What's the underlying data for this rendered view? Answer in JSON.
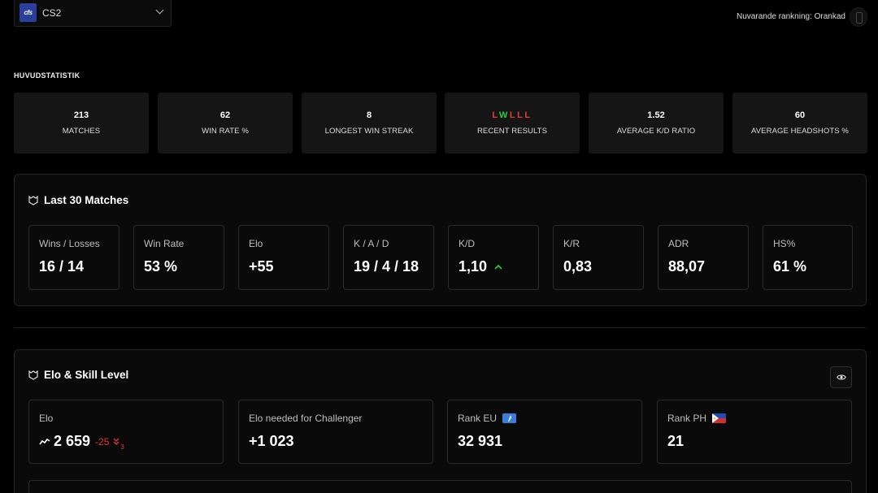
{
  "game_select": {
    "logo_text": "cfs",
    "name": "CS2"
  },
  "ranking": {
    "label": "Nuvarande rankning: Orankad"
  },
  "main_stats": {
    "title": "HUVUDSTATISTIK",
    "items": [
      {
        "value": "213",
        "label": "MATCHES"
      },
      {
        "value": "62",
        "label": "WIN RATE %"
      },
      {
        "value": "8",
        "label": "LONGEST WIN STREAK"
      },
      {
        "results": [
          "L",
          "W",
          "L",
          "L",
          "L"
        ],
        "label": "RECENT RESULTS"
      },
      {
        "value": "1.52",
        "label": "AVERAGE K/D RATIO"
      },
      {
        "value": "60",
        "label": "AVERAGE HEADSHOTS %"
      }
    ]
  },
  "last30": {
    "title": "Last 30 Matches",
    "cards": [
      {
        "label": "Wins / Losses",
        "value": "16 / 14"
      },
      {
        "label": "Win Rate",
        "value": "53 %"
      },
      {
        "label": "Elo",
        "value": "+55"
      },
      {
        "label": "K / A / D",
        "value": "19 / 4 / 18"
      },
      {
        "label": "K/D",
        "value": "1,10",
        "trend": "up"
      },
      {
        "label": "K/R",
        "value": "0,83"
      },
      {
        "label": "ADR",
        "value": "88,07"
      },
      {
        "label": "HS%",
        "value": "61 %"
      }
    ]
  },
  "elo_skill": {
    "title": "Elo & Skill Level",
    "cards": [
      {
        "label": "Elo",
        "value": "2 659",
        "delta": "-25",
        "delta_sub": "3"
      },
      {
        "label": "Elo needed for Challenger",
        "value": "+1 023"
      },
      {
        "label": "Rank EU",
        "value": "32 931",
        "flag": "eu-icon"
      },
      {
        "label": "Rank PH",
        "value": "21",
        "flag": "philippines-flag-icon"
      }
    ]
  },
  "colors": {
    "win": "#2ecc40",
    "loss": "#e53935",
    "accent": "#2a3f9c"
  }
}
